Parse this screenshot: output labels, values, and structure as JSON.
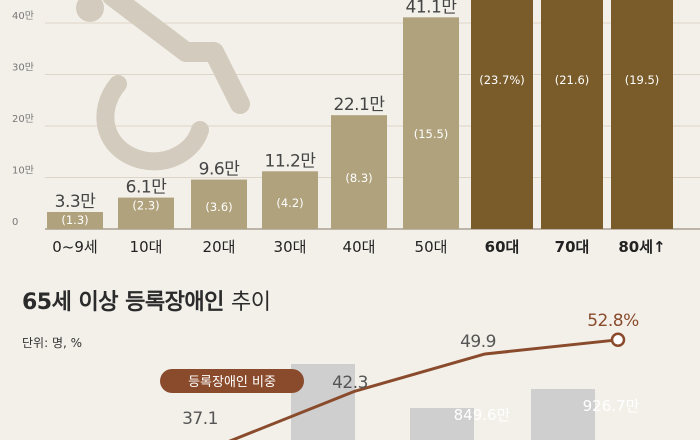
{
  "chart_data": [
    {
      "type": "bar",
      "categories": [
        "0~9세",
        "10대",
        "20대",
        "30대",
        "40대",
        "50대",
        "60대",
        "70대",
        "80세↑"
      ],
      "series": [
        {
          "values": [
            3.3,
            6.1,
            9.6,
            11.2,
            22.1,
            41.1,
            null,
            null,
            null
          ],
          "labels": [
            "3.3만",
            "6.1만",
            "9.6만",
            "11.2만",
            "22.1만",
            "41.1만",
            "",
            "",
            ""
          ]
        }
      ],
      "shares": [
        "(1.3)",
        "(2.3)",
        "(3.6)",
        "(4.2)",
        "(8.3)",
        "(15.5)",
        "(23.7%)",
        "(21.6)",
        "(19.5)"
      ],
      "yticks": [
        "0",
        "10만",
        "20만",
        "30만",
        "40만"
      ],
      "ytick_values": [
        0,
        10,
        20,
        30,
        40
      ],
      "ylim": [
        0,
        45
      ],
      "highlight_categories": [
        "60대",
        "70대",
        "80세↑"
      ],
      "colors": {
        "bar": "#b0a27c",
        "highlight": "#7a5c2b",
        "grid": "#d4ccbd",
        "axis": "#9a9080",
        "text": "#444444",
        "icon": "#d3cbbd"
      },
      "icon": "wheelchair-icon"
    },
    {
      "type": "line",
      "title_bold": "65세 이상 등록장애인",
      "title_light": "추이",
      "unit_note": "단위: 명, %",
      "series": [
        {
          "name": "등록장애인 비중",
          "values": [
            37.1,
            42.3,
            49.9,
            52.8
          ],
          "labels": [
            "37.1",
            "42.3",
            "49.9",
            "52.8%"
          ]
        }
      ],
      "bar_labels": [
        "849.6만",
        "926.7만"
      ],
      "colors": {
        "line": "#8a4b2c",
        "pill": "#8a4b2c",
        "pill_text": "#ffffff",
        "ghost_bar": "#cfcfcf",
        "ghost_text": "#ffffff",
        "label": "#555555",
        "last_label": "#8a4b2c"
      }
    }
  ]
}
